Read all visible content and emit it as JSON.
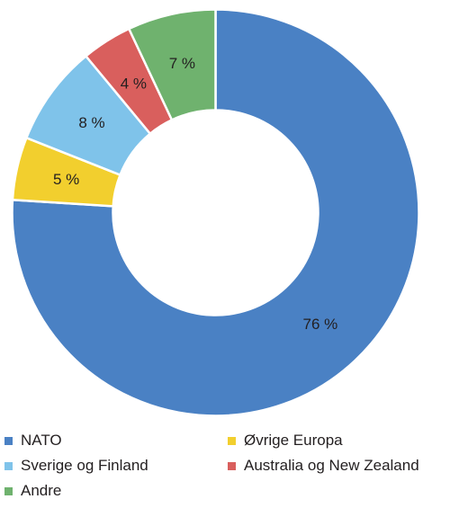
{
  "chart_data": {
    "type": "pie",
    "variant": "donut",
    "categories": [
      "NATO",
      "Øvrige Europa",
      "Sverige og Finland",
      "Australia og New Zealand",
      "Andre"
    ],
    "values": [
      76,
      5,
      8,
      4,
      7
    ],
    "labels": [
      "76 %",
      "5 %",
      "8 %",
      "4 %",
      "7 %"
    ],
    "colors": [
      "#4a81c4",
      "#f2cf2e",
      "#7fc3ea",
      "#d95f5d",
      "#6fb26e"
    ],
    "start_angle_deg": 0,
    "direction": "clockwise",
    "legend": {
      "placement": "bottom",
      "entries": [
        "NATO",
        "Øvrige Europa",
        "Sverige og Finland",
        "Australia og New Zealand",
        "Andre"
      ]
    }
  }
}
